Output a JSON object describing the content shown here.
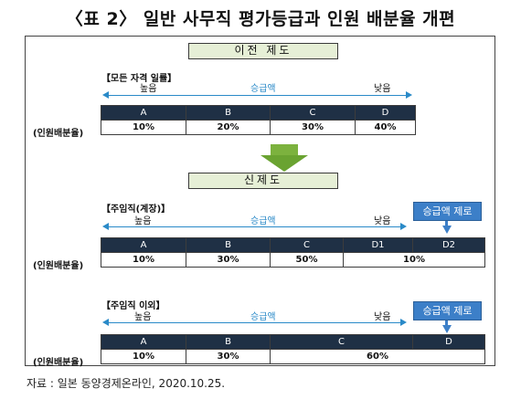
{
  "title": "〈표 2〉 일반 사무직 평가등급과 인원 배분율 개편",
  "old_system": {
    "header": "이전 제도",
    "bracket_label": "【모든 자격 일률】",
    "axis_high": "높음",
    "axis_mid": "승급액",
    "axis_low": "낮음",
    "grades": [
      "A",
      "B",
      "C",
      "D"
    ],
    "ratios": [
      "10%",
      "20%",
      "30%",
      "40%"
    ],
    "row_label": "(인원배분율)"
  },
  "arrow": {
    "icon": "down-arrow-icon",
    "color": "#6aa331"
  },
  "new_system": {
    "header": "신제도",
    "manager": {
      "bracket_label": "【주임직(계장)】",
      "axis_high": "높음",
      "axis_mid": "승급액",
      "axis_low": "낮음",
      "callout": "승급액 제로",
      "grades": [
        "A",
        "B",
        "C",
        "D1",
        "D2"
      ],
      "ratios": [
        "10%",
        "30%",
        "50%",
        "10%"
      ],
      "row_label": "(인원배분율)"
    },
    "non_manager": {
      "bracket_label": "【주임직 이외】",
      "axis_high": "높음",
      "axis_mid": "승급액",
      "axis_low": "낮음",
      "callout": "승급액 제로",
      "grades": [
        "A",
        "B",
        "C",
        "D"
      ],
      "ratios": [
        "10%",
        "30%",
        "60%"
      ],
      "row_label": "(인원배분율)"
    }
  },
  "colors": {
    "table_header": "#1f3045",
    "axis_arrow": "#2a8ac8",
    "callout": "#3c7fc8",
    "section_box": "#e6efd6"
  },
  "source": "자료 : 일본 동양경제온라인, 2020.10.25."
}
